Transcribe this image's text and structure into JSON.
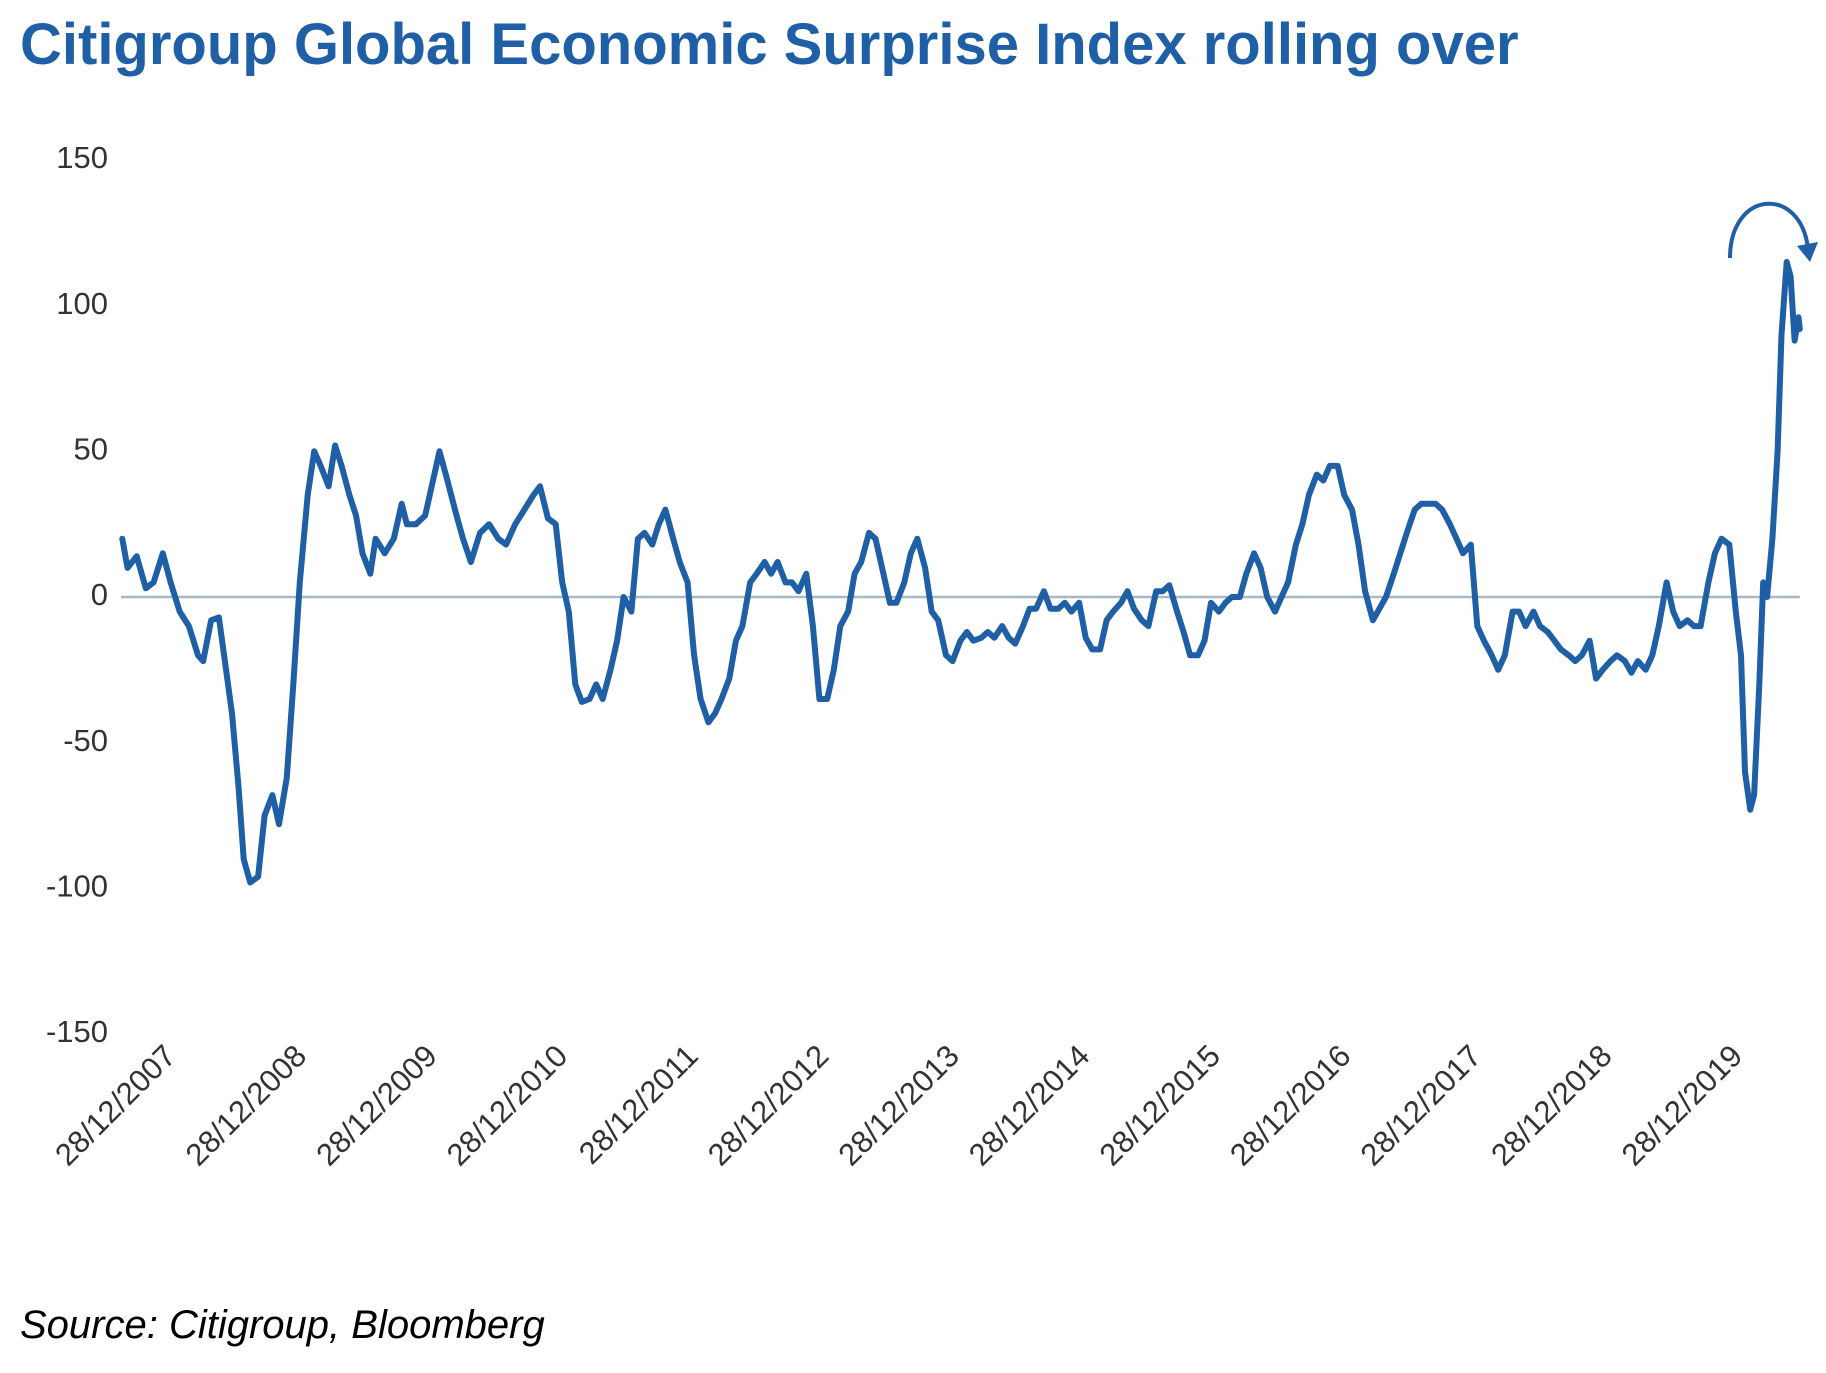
{
  "chart_data": {
    "type": "line",
    "title": "Citigroup Global Economic Surprise Index rolling over",
    "source": "Source: Citigroup, Bloomberg",
    "color": "#1f5fa6",
    "x": [
      2007.61,
      2007.65,
      2007.72,
      2007.79,
      2007.85,
      2007.92,
      2007.98,
      2008.05,
      2008.12,
      2008.19,
      2008.23,
      2008.29,
      2008.35,
      2008.39,
      2008.45,
      2008.5,
      2008.54,
      2008.59,
      2008.65,
      2008.7,
      2008.76,
      2008.81,
      2008.87,
      2008.92,
      2008.97,
      2009.03,
      2009.08,
      2009.13,
      2009.19,
      2009.24,
      2009.29,
      2009.35,
      2009.4,
      2009.45,
      2009.51,
      2009.55,
      2009.62,
      2009.69,
      2009.75,
      2009.79,
      2009.86,
      2009.93,
      2009.99,
      2010.04,
      2010.1,
      2010.17,
      2010.22,
      2010.28,
      2010.35,
      2010.42,
      2010.49,
      2010.55,
      2010.62,
      2010.69,
      2010.76,
      2010.81,
      2010.87,
      2010.93,
      2010.98,
      2011.03,
      2011.08,
      2011.13,
      2011.19,
      2011.24,
      2011.29,
      2011.35,
      2011.4,
      2011.45,
      2011.51,
      2011.56,
      2011.61,
      2011.67,
      2011.72,
      2011.77,
      2011.83,
      2011.88,
      2011.94,
      2011.99,
      2012.04,
      2012.1,
      2012.15,
      2012.2,
      2012.26,
      2012.31,
      2012.36,
      2012.42,
      2012.47,
      2012.53,
      2012.58,
      2012.63,
      2012.69,
      2012.74,
      2012.79,
      2012.85,
      2012.9,
      2012.95,
      2013.01,
      2013.06,
      2013.11,
      2013.17,
      2013.22,
      2013.27,
      2013.33,
      2013.38,
      2013.44,
      2013.49,
      2013.54,
      2013.6,
      2013.65,
      2013.7,
      2013.76,
      2013.81,
      2013.86,
      2013.92,
      2013.97,
      2014.03,
      2014.08,
      2014.13,
      2014.19,
      2014.24,
      2014.29,
      2014.35,
      2014.4,
      2014.45,
      2014.51,
      2014.56,
      2014.61,
      2014.67,
      2014.72,
      2014.78,
      2014.83,
      2014.88,
      2014.94,
      2014.99,
      2015.04,
      2015.1,
      2015.15,
      2015.2,
      2015.26,
      2015.31,
      2015.36,
      2015.42,
      2015.47,
      2015.53,
      2015.58,
      2015.63,
      2015.69,
      2015.74,
      2015.79,
      2015.85,
      2015.9,
      2015.95,
      2016.01,
      2016.06,
      2016.11,
      2016.17,
      2016.22,
      2016.28,
      2016.33,
      2016.38,
      2016.44,
      2016.49,
      2016.54,
      2016.6,
      2016.65,
      2016.7,
      2016.76,
      2016.81,
      2016.86,
      2016.92,
      2016.97,
      2017.03,
      2017.08,
      2017.13,
      2017.19,
      2017.24,
      2017.29,
      2017.35,
      2017.4,
      2017.45,
      2017.51,
      2017.56,
      2017.61,
      2017.67,
      2017.72,
      2017.78,
      2017.83,
      2017.88,
      2017.94,
      2017.99,
      2018.04,
      2018.1,
      2018.15,
      2018.2,
      2018.26,
      2018.31,
      2018.36,
      2018.42,
      2018.47,
      2018.53,
      2018.58,
      2018.63,
      2018.69,
      2018.74,
      2018.79,
      2018.85,
      2018.9,
      2018.95,
      2019.01,
      2019.06,
      2019.12,
      2019.17,
      2019.22,
      2019.28,
      2019.33,
      2019.38,
      2019.44,
      2019.49,
      2019.54,
      2019.6,
      2019.65,
      2019.7,
      2019.76,
      2019.81,
      2019.86,
      2019.92,
      2019.97,
      2020.01,
      2020.04,
      2020.08,
      2020.11,
      2020.15,
      2020.18,
      2020.21,
      2020.25,
      2020.29,
      2020.32,
      2020.36,
      2020.39,
      2020.42,
      2020.45,
      2020.46
    ],
    "values": [
      20,
      10,
      14,
      3,
      5,
      15,
      5,
      -5,
      -10,
      -20,
      -22,
      -8,
      -7,
      -20,
      -40,
      -65,
      -90,
      -98,
      -96,
      -75,
      -68,
      -78,
      -62,
      -30,
      5,
      35,
      50,
      45,
      38,
      52,
      45,
      35,
      28,
      15,
      8,
      20,
      15,
      20,
      32,
      25,
      25,
      28,
      40,
      50,
      40,
      28,
      20,
      12,
      22,
      25,
      20,
      18,
      25,
      30,
      35,
      38,
      27,
      25,
      5,
      -5,
      -30,
      -36,
      -35,
      -30,
      -35,
      -25,
      -15,
      0,
      -5,
      20,
      22,
      18,
      25,
      30,
      20,
      12,
      5,
      -20,
      -35,
      -43,
      -40,
      -35,
      -28,
      -15,
      -10,
      5,
      8,
      12,
      8,
      12,
      5,
      5,
      2,
      8,
      -10,
      -35,
      -35,
      -25,
      -10,
      -5,
      8,
      12,
      22,
      20,
      8,
      -2,
      -2,
      5,
      15,
      20,
      10,
      -5,
      -8,
      -20,
      -22,
      -15,
      -12,
      -15,
      -14,
      -12,
      -14,
      -10,
      -14,
      -16,
      -10,
      -4,
      -4,
      2,
      -4,
      -4,
      -2,
      -5,
      -2,
      -14,
      -18,
      -18,
      -8,
      -5,
      -2,
      2,
      -4,
      -8,
      -10,
      2,
      2,
      4,
      -5,
      -12,
      -20,
      -20,
      -15,
      -2,
      -5,
      -2,
      0,
      0,
      8,
      15,
      10,
      0,
      -5,
      0,
      5,
      18,
      25,
      35,
      42,
      40,
      45,
      45,
      35,
      30,
      18,
      2,
      -8,
      -4,
      0,
      8,
      15,
      22,
      30,
      32,
      32,
      32,
      30,
      25,
      20,
      15,
      18,
      -10,
      -15,
      -20,
      -25,
      -20,
      -5,
      -5,
      -10,
      -5,
      -10,
      -12,
      -15,
      -18,
      -20,
      -22,
      -20,
      -15,
      -28,
      -25,
      -22,
      -20,
      -22,
      -26,
      -22,
      -25,
      -20,
      -10,
      5,
      -5,
      -10,
      -8,
      -10,
      -10,
      5,
      15,
      20,
      18,
      -5,
      -20,
      -60,
      -73,
      -68,
      -30,
      5,
      0,
      20,
      50,
      90,
      115,
      110,
      88,
      96,
      92
    ],
    "xlim": [
      2007.6,
      2020.5
    ],
    "xticks": [
      {
        "value": 2007.99,
        "label": "28/12/2007"
      },
      {
        "value": 2008.99,
        "label": "28/12/2008"
      },
      {
        "value": 2009.99,
        "label": "28/12/2009"
      },
      {
        "value": 2010.99,
        "label": "28/12/2010"
      },
      {
        "value": 2011.99,
        "label": "28/12/2011"
      },
      {
        "value": 2012.99,
        "label": "28/12/2012"
      },
      {
        "value": 2013.99,
        "label": "28/12/2013"
      },
      {
        "value": 2014.99,
        "label": "28/12/2014"
      },
      {
        "value": 2015.99,
        "label": "28/12/2015"
      },
      {
        "value": 2016.99,
        "label": "28/12/2016"
      },
      {
        "value": 2017.99,
        "label": "28/12/2017"
      },
      {
        "value": 2018.99,
        "label": "28/12/2018"
      },
      {
        "value": 2019.99,
        "label": "28/12/2019"
      }
    ],
    "ylim": [
      -150,
      150
    ],
    "yticks": [
      -150,
      -100,
      -50,
      0,
      50,
      100,
      150
    ],
    "grid": false
  }
}
